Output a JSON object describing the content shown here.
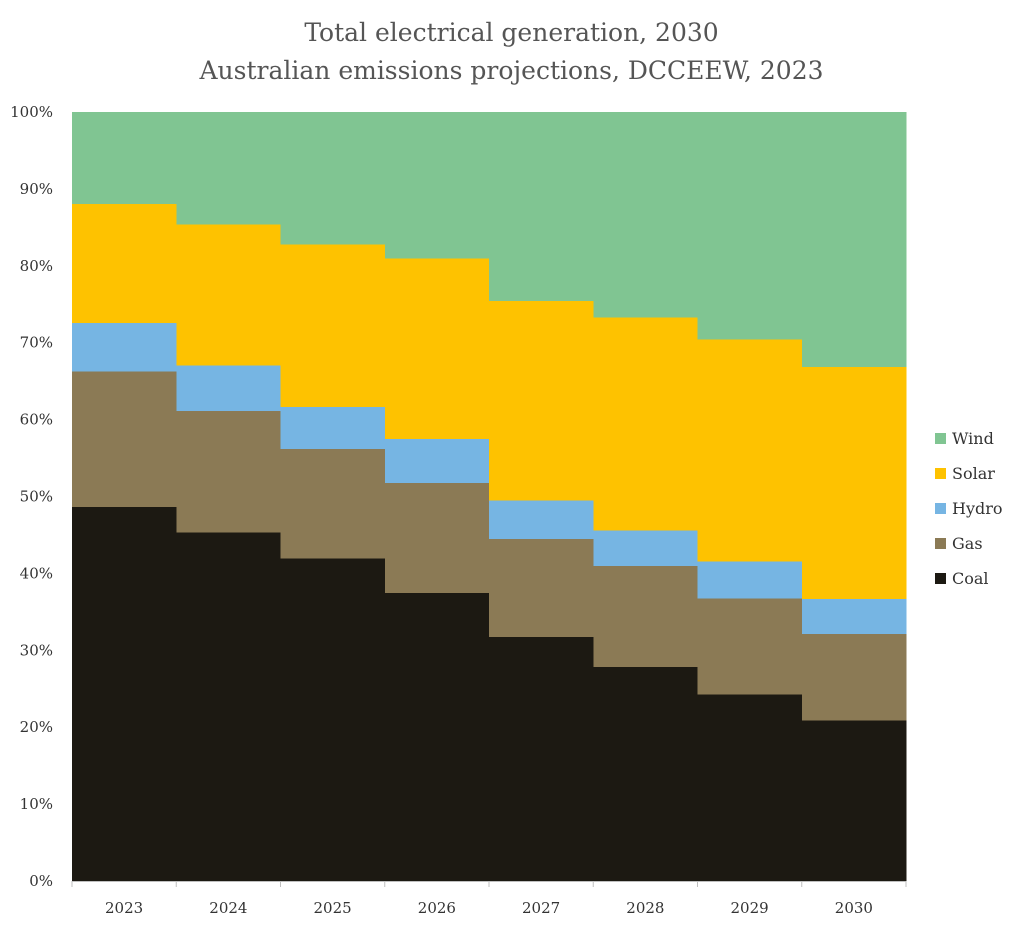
{
  "chart_data": {
    "type": "area",
    "title": "Total electrical generation, 2030",
    "subtitle": "Australian emissions projections, DCCEEW, 2023",
    "categories": [
      "2023",
      "2024",
      "2025",
      "2026",
      "2027",
      "2028",
      "2029",
      "2030"
    ],
    "y_ticks": [
      "0%",
      "10%",
      "20%",
      "30%",
      "40%",
      "50%",
      "60%",
      "70%",
      "80%",
      "90%",
      "100%"
    ],
    "ylim": [
      0,
      100
    ],
    "stacked": true,
    "step": true,
    "grid": false,
    "legend_position": "right",
    "series": [
      {
        "name": "Coal",
        "color": "#1c1912",
        "values": [
          48.7,
          45.4,
          42.0,
          37.5,
          31.8,
          27.9,
          24.3,
          20.9
        ]
      },
      {
        "name": "Gas",
        "color": "#8b7a55",
        "values": [
          17.6,
          15.8,
          14.2,
          14.3,
          12.7,
          13.1,
          12.5,
          11.3
        ]
      },
      {
        "name": "Hydro",
        "color": "#76b5e3",
        "values": [
          6.3,
          5.9,
          5.5,
          5.7,
          5.0,
          4.6,
          4.8,
          4.5
        ]
      },
      {
        "name": "Solar",
        "color": "#fec200",
        "values": [
          15.5,
          18.3,
          21.1,
          23.5,
          26.0,
          27.7,
          28.9,
          30.2
        ]
      },
      {
        "name": "Wind",
        "color": "#80c592",
        "values": [
          11.9,
          14.6,
          17.2,
          19.0,
          24.5,
          26.7,
          29.5,
          33.1
        ]
      }
    ],
    "legend_order": [
      "Wind",
      "Solar",
      "Hydro",
      "Gas",
      "Coal"
    ]
  }
}
